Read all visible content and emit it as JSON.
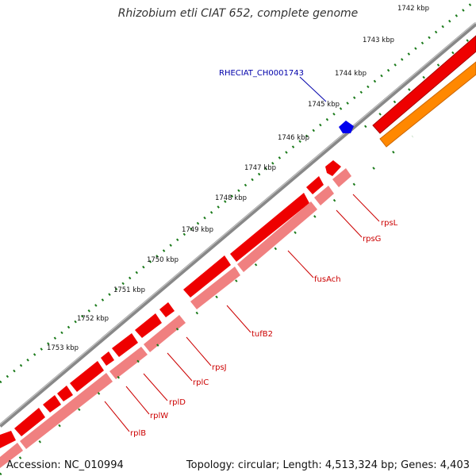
{
  "title": "Rhizobium etli CIAT 652, complete genome",
  "footer": {
    "accession": "Accession: NC_010994",
    "summary": "Topology: circular; Length: 4,513,324 bp; Genes: 4,403"
  },
  "ruler": {
    "ticks": [
      {
        "label": "1742 kbp"
      },
      {
        "label": "1743 kbp"
      },
      {
        "label": "1744 kbp"
      },
      {
        "label": "1745 kbp"
      },
      {
        "label": "1746 kbp"
      },
      {
        "label": "1747 kbp"
      },
      {
        "label": "1748 kbp"
      },
      {
        "label": "1749 kbp"
      },
      {
        "label": "1750 kbp"
      },
      {
        "label": "1751 kbp"
      },
      {
        "label": "1752 kbp"
      },
      {
        "label": "1753 kbp"
      }
    ]
  },
  "feature_labels": [
    {
      "name": "RHECIAT_CH0001743",
      "color": "#0000aa"
    },
    {
      "name": "rpsL",
      "color": "#cc0000"
    },
    {
      "name": "rpsG",
      "color": "#cc0000"
    },
    {
      "name": "fusAch",
      "color": "#cc0000"
    },
    {
      "name": "tufB2",
      "color": "#cc0000"
    },
    {
      "name": "rpsJ",
      "color": "#cc0000"
    },
    {
      "name": "rplC",
      "color": "#cc0000"
    },
    {
      "name": "rplD",
      "color": "#cc0000"
    },
    {
      "name": "rplW",
      "color": "#cc0000"
    },
    {
      "name": "rplB",
      "color": "#cc0000"
    }
  ],
  "colors": {
    "backbone": "#888888",
    "ruler": "#1a7a1a",
    "cds": "#ee0000",
    "cds_light": "#f08080",
    "rna": "#ff8800",
    "misc": "#0000ee"
  }
}
